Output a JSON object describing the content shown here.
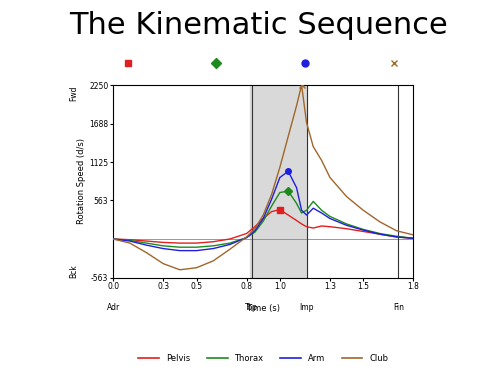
{
  "chart_data": {
    "type": "line",
    "title": "The Kinematic Sequence",
    "x_label": "Time (s)",
    "y_label": "Rotation Speed (d/s)",
    "y_direction_labels": {
      "top": "Fwd",
      "bottom": "Bck"
    },
    "x": [
      0.0,
      0.1,
      0.2,
      0.3,
      0.4,
      0.5,
      0.6,
      0.7,
      0.8,
      0.85,
      0.9,
      0.95,
      1.0,
      1.05,
      1.1,
      1.13,
      1.16,
      1.2,
      1.25,
      1.3,
      1.4,
      1.5,
      1.6,
      1.7,
      1.8
    ],
    "series": [
      {
        "name": "Pelvis",
        "color": "#e02020",
        "marker": "square",
        "values": [
          0,
          -10,
          -30,
          -50,
          -60,
          -60,
          -40,
          0,
          80,
          180,
          300,
          400,
          430,
          350,
          270,
          220,
          180,
          160,
          190,
          180,
          150,
          110,
          70,
          30,
          10
        ]
      },
      {
        "name": "Thorax",
        "color": "#1e8a1e",
        "marker": "diamond",
        "values": [
          0,
          -20,
          -60,
          -100,
          -120,
          -120,
          -100,
          -60,
          20,
          100,
          260,
          480,
          680,
          700,
          520,
          380,
          420,
          550,
          420,
          330,
          220,
          140,
          80,
          40,
          10
        ]
      },
      {
        "name": "Arm",
        "color": "#1f1fe0",
        "marker": "circle",
        "values": [
          0,
          -30,
          -90,
          -140,
          -170,
          -170,
          -140,
          -80,
          20,
          120,
          300,
          580,
          900,
          990,
          750,
          420,
          350,
          450,
          380,
          300,
          200,
          130,
          70,
          30,
          10
        ]
      },
      {
        "name": "Club",
        "color": "#a0662a",
        "marker": "x",
        "values": [
          0,
          -60,
          -200,
          -360,
          -450,
          -420,
          -320,
          -150,
          30,
          150,
          350,
          650,
          1050,
          1500,
          1950,
          2250,
          1700,
          1350,
          1150,
          900,
          620,
          420,
          250,
          120,
          60
        ]
      }
    ],
    "events": [
      {
        "name": "Adr",
        "x": 0.0
      },
      {
        "name": "Top",
        "x": 0.83
      },
      {
        "name": "Imp",
        "x": 1.16
      },
      {
        "name": "Fin",
        "x": 1.71
      }
    ],
    "highlight": [
      0.82,
      1.16
    ],
    "xlim": [
      0.0,
      1.8
    ],
    "xticks": [
      {
        "value": 0.0,
        "label": "0.0"
      },
      0.3,
      0.5,
      0.8,
      {
        "value": 1.0,
        "label": "1.0"
      },
      1.3,
      1.5,
      1.8
    ],
    "ylim": [
      -563,
      2250
    ],
    "yticks": [
      -563,
      563,
      1125,
      1688,
      2250
    ],
    "legend": "bottom",
    "grid": false
  }
}
